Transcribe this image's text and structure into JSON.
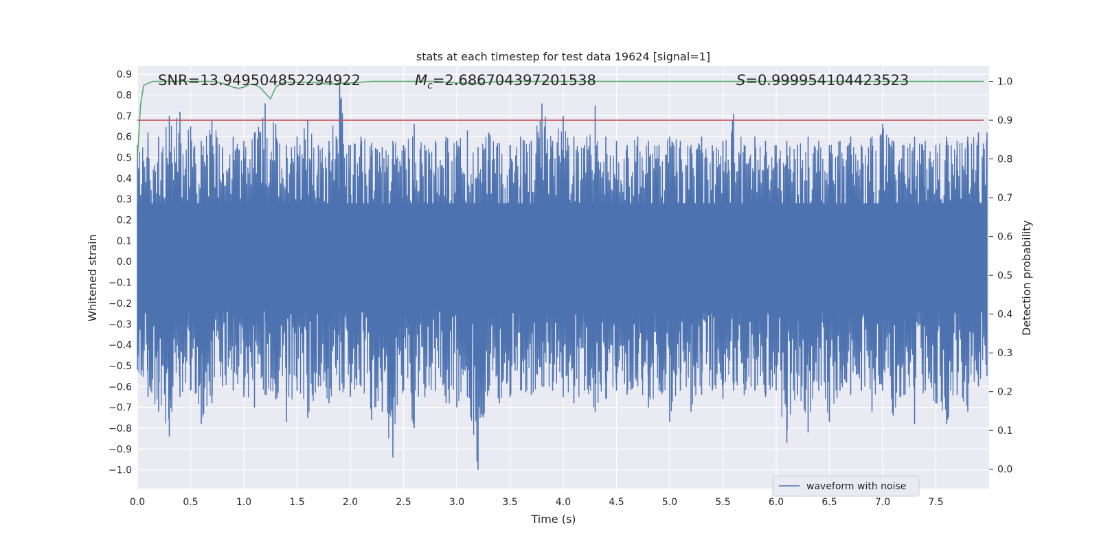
{
  "chart_data": {
    "type": "line",
    "title": "stats at each timestep for test data 19624 [signal=1]",
    "xlabel": "Time (s)",
    "ylabel": "Whitened strain",
    "y2label": "Detection probability",
    "xlim": [
      0.0,
      8.0
    ],
    "ylim": [
      -1.09,
      0.94
    ],
    "y2lim": [
      -0.05,
      1.04
    ],
    "xticks": [
      "0.0",
      "0.5",
      "1.0",
      "1.5",
      "2.0",
      "2.5",
      "3.0",
      "3.5",
      "4.0",
      "4.5",
      "5.0",
      "5.5",
      "6.0",
      "6.5",
      "7.0",
      "7.5"
    ],
    "yticks": [
      "0.9",
      "0.8",
      "0.7",
      "0.6",
      "0.5",
      "0.4",
      "0.3",
      "0.2",
      "0.1",
      "0.0",
      "−0.1",
      "−0.2",
      "−0.3",
      "−0.4",
      "−0.5",
      "−0.6",
      "−0.7",
      "−0.8",
      "−0.9",
      "−1.0"
    ],
    "y2ticks": [
      "1.0",
      "0.9",
      "0.8",
      "0.7",
      "0.6",
      "0.5",
      "0.4",
      "0.3",
      "0.2",
      "0.1",
      "0.0"
    ],
    "grid": true,
    "legend_position": "lower-right",
    "annotations": {
      "snr": "SNR=13.949504852294922",
      "mc_symbol": "M",
      "mc_sub": "c",
      "mc_value": "=2.686704397201538",
      "s_symbol": "S",
      "s_value": "=0.999954104423523"
    },
    "series": [
      {
        "name": "waveform with noise",
        "axis": "left",
        "color": "#4c72b0",
        "note_envelope": "dense noise; values below are per-timestep upper/lower envelopes",
        "x": [
          0.0,
          0.1,
          0.2,
          0.3,
          0.4,
          0.5,
          0.6,
          0.7,
          0.8,
          0.9,
          1.0,
          1.1,
          1.2,
          1.3,
          1.4,
          1.5,
          1.6,
          1.7,
          1.8,
          1.9,
          2.0,
          2.1,
          2.2,
          2.3,
          2.4,
          2.5,
          2.6,
          2.7,
          2.8,
          2.9,
          3.0,
          3.1,
          3.2,
          3.3,
          3.4,
          3.5,
          3.6,
          3.7,
          3.8,
          3.9,
          4.0,
          4.1,
          4.2,
          4.3,
          4.4,
          4.5,
          4.6,
          4.7,
          4.8,
          4.9,
          5.0,
          5.1,
          5.2,
          5.3,
          5.4,
          5.5,
          5.6,
          5.7,
          5.8,
          5.9,
          6.0,
          6.1,
          6.2,
          6.3,
          6.4,
          6.5,
          6.6,
          6.7,
          6.8,
          6.9,
          7.0,
          7.1,
          7.2,
          7.3,
          7.4,
          7.5,
          7.6,
          7.7,
          7.8,
          7.9,
          7.98
        ],
        "upper": [
          0.56,
          0.62,
          0.6,
          0.7,
          0.72,
          0.65,
          0.58,
          0.68,
          0.55,
          0.6,
          0.58,
          0.62,
          0.76,
          0.66,
          0.56,
          0.6,
          0.68,
          0.56,
          0.58,
          0.86,
          0.56,
          0.6,
          0.57,
          0.55,
          0.58,
          0.56,
          0.66,
          0.56,
          0.58,
          0.6,
          0.58,
          0.63,
          0.55,
          0.62,
          0.57,
          0.56,
          0.6,
          0.58,
          0.76,
          0.58,
          0.7,
          0.6,
          0.56,
          0.75,
          0.6,
          0.58,
          0.56,
          0.6,
          0.58,
          0.56,
          0.6,
          0.58,
          0.56,
          0.6,
          0.56,
          0.58,
          0.71,
          0.56,
          0.6,
          0.58,
          0.56,
          0.58,
          0.56,
          0.6,
          0.58,
          0.56,
          0.58,
          0.6,
          0.56,
          0.6,
          0.66,
          0.58,
          0.56,
          0.6,
          0.58,
          0.56,
          0.6,
          0.58,
          0.6,
          0.62,
          0.62
        ],
        "lower": [
          -0.52,
          -0.65,
          -0.72,
          -0.84,
          -0.65,
          -0.62,
          -0.78,
          -0.68,
          -0.6,
          -0.62,
          -0.65,
          -0.7,
          -0.64,
          -0.66,
          -0.77,
          -0.62,
          -0.75,
          -0.6,
          -0.68,
          -0.62,
          -0.65,
          -0.6,
          -0.76,
          -0.72,
          -0.94,
          -0.62,
          -0.8,
          -0.65,
          -0.62,
          -0.68,
          -0.7,
          -0.65,
          -1.0,
          -0.62,
          -0.68,
          -0.65,
          -0.62,
          -0.64,
          -0.6,
          -0.62,
          -0.65,
          -0.68,
          -0.62,
          -0.72,
          -0.66,
          -0.62,
          -0.64,
          -0.6,
          -0.7,
          -0.62,
          -0.77,
          -0.62,
          -0.72,
          -0.64,
          -0.62,
          -0.66,
          -0.62,
          -0.64,
          -0.62,
          -0.65,
          -0.62,
          -0.87,
          -0.64,
          -0.82,
          -0.62,
          -0.77,
          -0.62,
          -0.64,
          -0.62,
          -0.72,
          -0.62,
          -0.74,
          -0.64,
          -0.78,
          -0.62,
          -0.68,
          -0.78,
          -0.64,
          -0.72,
          -0.6,
          -0.55
        ]
      },
      {
        "name": "",
        "axis": "right",
        "color": "#55a868",
        "x": [
          0.0,
          0.03,
          0.06,
          0.1,
          0.15,
          0.2,
          0.3,
          0.5,
          0.6,
          0.65,
          0.7,
          0.8,
          0.9,
          0.95,
          1.0,
          1.05,
          1.1,
          1.15,
          1.2,
          1.25,
          1.3,
          1.35,
          1.4,
          1.5,
          1.6,
          1.7,
          1.8,
          1.9,
          2.0,
          2.1,
          2.2,
          2.4,
          2.6,
          2.8,
          3.0,
          3.2,
          3.4,
          3.6,
          3.8,
          4.0,
          5.0,
          6.0,
          7.0,
          7.5,
          7.95
        ],
        "values": [
          0.8,
          0.94,
          0.99,
          0.995,
          1.0,
          1.0,
          1.0,
          1.0,
          1.0,
          1.0,
          1.0,
          0.995,
          0.985,
          0.982,
          0.985,
          0.992,
          0.992,
          0.985,
          0.97,
          0.955,
          0.985,
          0.995,
          0.998,
          0.998,
          0.998,
          0.996,
          0.993,
          0.995,
          0.996,
          0.998,
          1.0,
          1.0,
          1.0,
          1.0,
          0.996,
          0.995,
          1.0,
          1.0,
          1.0,
          1.0,
          1.0,
          1.0,
          1.0,
          1.0,
          1.0
        ]
      },
      {
        "name": "",
        "axis": "right",
        "color": "#c44e52",
        "x": [
          0.0,
          7.95
        ],
        "values": [
          0.9,
          0.9
        ]
      }
    ]
  }
}
